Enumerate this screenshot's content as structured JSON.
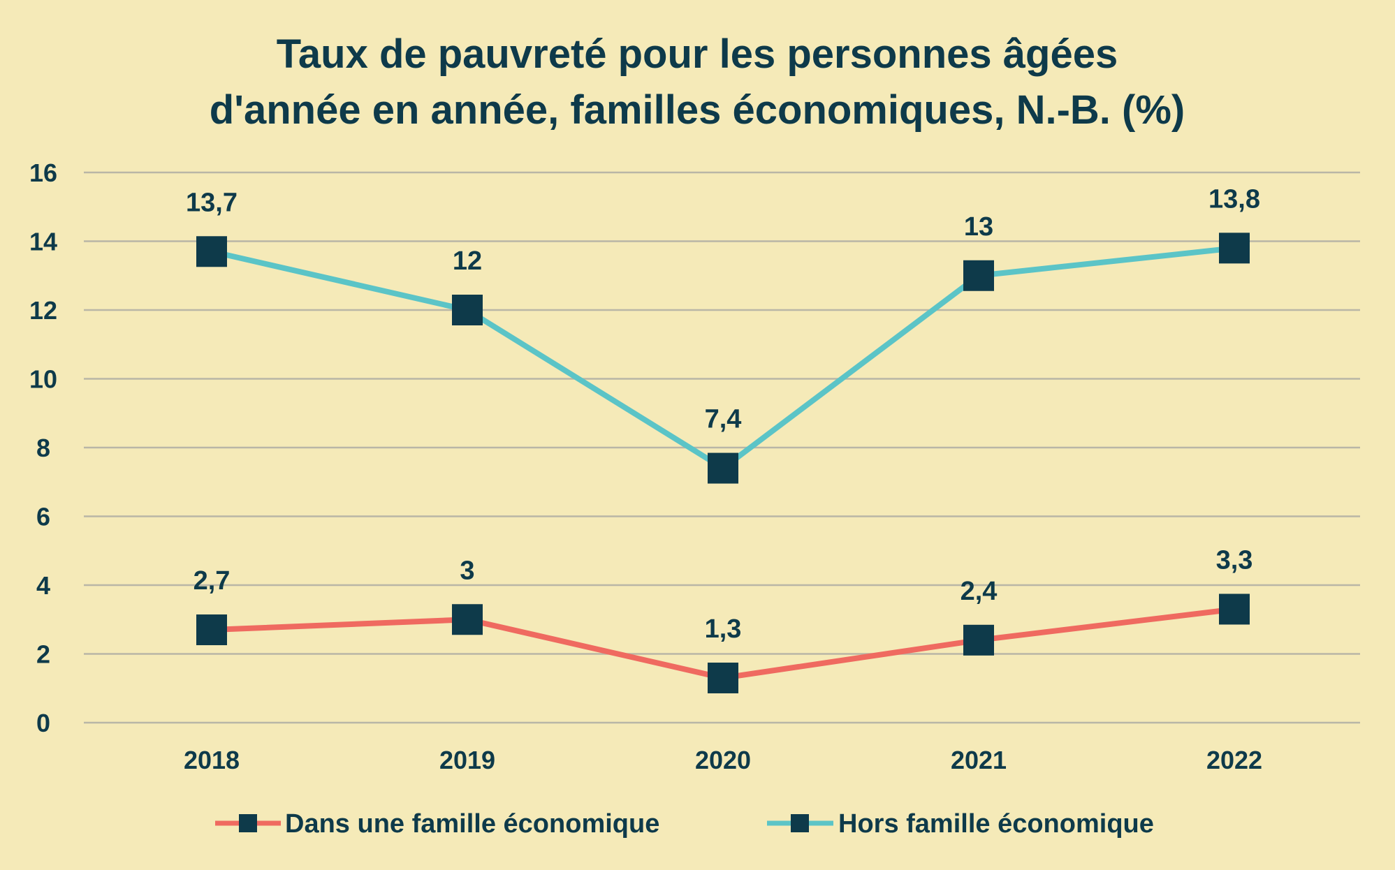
{
  "chart_data": {
    "type": "line",
    "title_lines": [
      "Taux de pauvreté pour les personnes âgées",
      "d'année en année, familles économiques, N.-B. (%)"
    ],
    "categories": [
      "2018",
      "2019",
      "2020",
      "2021",
      "2022"
    ],
    "yticks": [
      "0",
      "2",
      "4",
      "6",
      "8",
      "10",
      "12",
      "14",
      "16"
    ],
    "ylim": [
      0,
      16
    ],
    "grid": true,
    "legend_position": "bottom",
    "series": [
      {
        "name": "Dans une famille économique",
        "color": "#ef6a60",
        "values": [
          2.7,
          3,
          1.3,
          2.4,
          3.3
        ],
        "labels": [
          "2,7",
          "3",
          "1,3",
          "2,4",
          "3,3"
        ]
      },
      {
        "name": "Hors famille économique",
        "color": "#5bc4c7",
        "values": [
          13.7,
          12,
          7.4,
          13,
          13.8
        ],
        "labels": [
          "13,7",
          "12",
          "7,4",
          "13",
          "13,8"
        ]
      }
    ],
    "marker_color": "#0e3a4a"
  }
}
